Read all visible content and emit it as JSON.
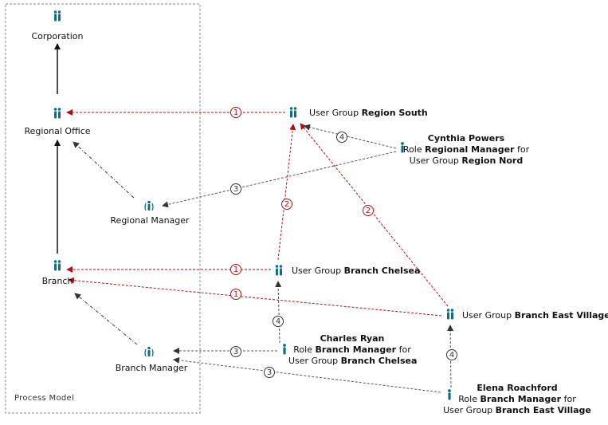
{
  "process_model": {
    "title": "Process Model",
    "nodes": {
      "corporation": "Corporation",
      "regional_office": "Regional Office",
      "regional_manager": "Regional Manager",
      "branch": "Branch",
      "branch_manager": "Branch Manager"
    }
  },
  "user_groups": {
    "region_south": {
      "prefix": "User Group",
      "name": "Region South"
    },
    "branch_chelsea": {
      "prefix": "User Group",
      "name": "Branch Chelsea"
    },
    "branch_east_village": {
      "prefix": "User Group",
      "name": "Branch East Village"
    }
  },
  "people": {
    "cynthia": {
      "name": "Cynthia Powers",
      "role_prefix": "Role",
      "role": "Regional Manager",
      "for": "for",
      "group_prefix": "User Group",
      "group": "Region Nord"
    },
    "charles": {
      "name": "Charles Ryan",
      "role_prefix": "Role",
      "role": "Branch Manager",
      "for": "for",
      "group_prefix": "User Group",
      "group": "Branch Chelsea"
    },
    "elena": {
      "name": "Elena Roachford",
      "role_prefix": "Role",
      "role": "Branch Manager",
      "for": "for",
      "group_prefix": "User Group",
      "group": "Branch East Village"
    }
  },
  "markers": {
    "one": "1",
    "two": "2",
    "three": "3",
    "four": "4"
  },
  "colors": {
    "icon": "#0e6e87",
    "red_link": "#b01010",
    "gray_link": "#555555",
    "frame": "#888888"
  }
}
